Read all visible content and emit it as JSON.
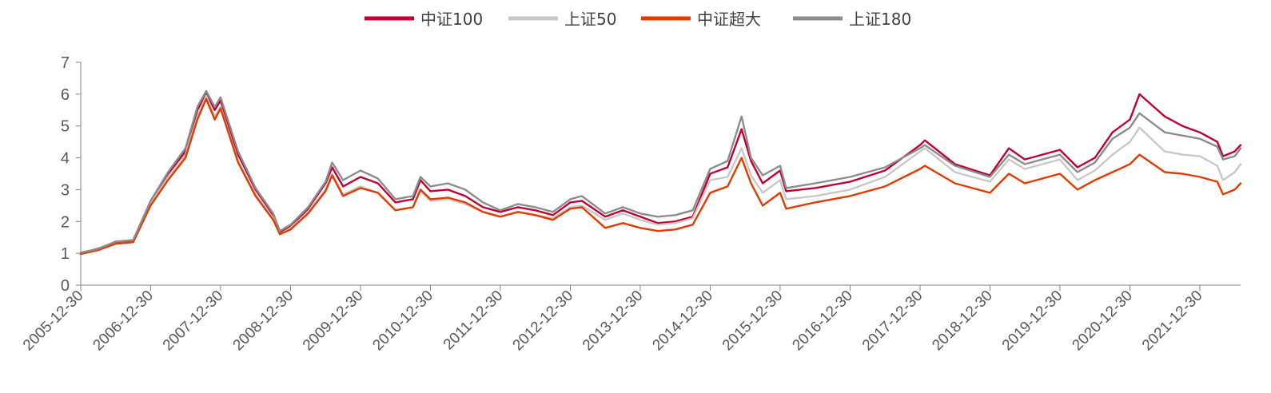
{
  "chart_data": {
    "type": "line",
    "title": "",
    "xlabel": "",
    "ylabel": "",
    "ylim": [
      0,
      7
    ],
    "yticks": [
      0,
      1,
      2,
      3,
      4,
      5,
      6,
      7
    ],
    "xlim": [
      "2005-12-30",
      "2022-07-31"
    ],
    "xticks": [
      "2005-12-30",
      "2006-12-30",
      "2007-12-30",
      "2008-12-30",
      "2009-12-30",
      "2010-12-30",
      "2011-12-30",
      "2012-12-30",
      "2013-12-30",
      "2014-12-30",
      "2015-12-30",
      "2016-12-30",
      "2017-12-30",
      "2018-12-30",
      "2019-12-30",
      "2020-12-30",
      "2021-12-30"
    ],
    "grid": false,
    "legend_position": "top-center",
    "x": [
      "2005-12-30",
      "2006-03-31",
      "2006-06-30",
      "2006-09-30",
      "2006-12-30",
      "2007-03-31",
      "2007-06-30",
      "2007-08-31",
      "2007-10-16",
      "2007-11-30",
      "2007-12-30",
      "2008-03-31",
      "2008-06-30",
      "2008-09-30",
      "2008-11-04",
      "2008-12-30",
      "2009-03-31",
      "2009-06-30",
      "2009-08-04",
      "2009-09-30",
      "2009-12-30",
      "2010-03-31",
      "2010-06-30",
      "2010-09-30",
      "2010-11-08",
      "2010-12-30",
      "2011-03-31",
      "2011-06-30",
      "2011-09-30",
      "2011-12-30",
      "2012-03-31",
      "2012-06-30",
      "2012-09-30",
      "2012-12-30",
      "2013-02-28",
      "2013-06-30",
      "2013-09-30",
      "2013-12-30",
      "2014-03-31",
      "2014-06-30",
      "2014-09-30",
      "2014-12-30",
      "2015-03-31",
      "2015-06-12",
      "2015-07-31",
      "2015-09-30",
      "2015-12-30",
      "2016-01-31",
      "2016-06-30",
      "2016-12-30",
      "2017-06-30",
      "2017-12-30",
      "2018-01-24",
      "2018-06-30",
      "2018-12-30",
      "2019-04-08",
      "2019-06-30",
      "2019-12-30",
      "2020-03-31",
      "2020-06-30",
      "2020-09-30",
      "2020-12-30",
      "2021-02-18",
      "2021-06-30",
      "2021-09-30",
      "2021-12-30",
      "2022-03-31",
      "2022-04-30",
      "2022-06-30",
      "2022-07-31"
    ],
    "series": [
      {
        "name": "中证100",
        "color": "#c00030",
        "values": [
          1.0,
          1.15,
          1.35,
          1.4,
          2.6,
          3.5,
          4.2,
          5.5,
          6.05,
          5.5,
          5.8,
          4.1,
          3.0,
          2.2,
          1.65,
          1.85,
          2.4,
          3.2,
          3.7,
          3.1,
          3.4,
          3.2,
          2.6,
          2.7,
          3.3,
          2.95,
          3.0,
          2.8,
          2.45,
          2.3,
          2.45,
          2.35,
          2.2,
          2.6,
          2.65,
          2.15,
          2.35,
          2.15,
          1.95,
          2.0,
          2.15,
          3.5,
          3.7,
          4.9,
          3.9,
          3.2,
          3.6,
          2.95,
          3.05,
          3.25,
          3.6,
          4.4,
          4.55,
          3.8,
          3.45,
          4.3,
          3.95,
          4.25,
          3.7,
          4.0,
          4.8,
          5.2,
          6.0,
          5.3,
          5.0,
          4.8,
          4.5,
          4.05,
          4.2,
          4.4
        ]
      },
      {
        "name": "上证50",
        "color": "#c8c8c8",
        "values": [
          1.0,
          1.12,
          1.3,
          1.35,
          2.55,
          3.4,
          4.1,
          5.3,
          5.95,
          5.3,
          5.6,
          3.9,
          2.85,
          2.1,
          1.6,
          1.8,
          2.3,
          3.0,
          3.5,
          2.85,
          3.1,
          2.9,
          2.35,
          2.45,
          2.95,
          2.65,
          2.7,
          2.55,
          2.3,
          2.15,
          2.3,
          2.2,
          2.1,
          2.45,
          2.5,
          2.05,
          2.25,
          2.05,
          1.9,
          1.95,
          2.1,
          3.3,
          3.4,
          4.3,
          3.45,
          2.9,
          3.3,
          2.7,
          2.8,
          3.0,
          3.4,
          4.2,
          4.3,
          3.55,
          3.25,
          3.95,
          3.65,
          3.95,
          3.3,
          3.6,
          4.1,
          4.5,
          4.95,
          4.2,
          4.1,
          4.05,
          3.75,
          3.3,
          3.55,
          3.8
        ]
      },
      {
        "name": "中证超大",
        "color": "#e03c00",
        "values": [
          0.98,
          1.1,
          1.3,
          1.35,
          2.5,
          3.3,
          4.0,
          5.2,
          5.85,
          5.2,
          5.55,
          3.85,
          2.8,
          2.05,
          1.6,
          1.75,
          2.25,
          2.95,
          3.45,
          2.8,
          3.05,
          2.9,
          2.35,
          2.45,
          3.0,
          2.7,
          2.75,
          2.6,
          2.3,
          2.15,
          2.3,
          2.2,
          2.05,
          2.4,
          2.45,
          1.8,
          1.95,
          1.8,
          1.7,
          1.75,
          1.9,
          2.9,
          3.1,
          4.0,
          3.2,
          2.5,
          2.9,
          2.4,
          2.6,
          2.8,
          3.1,
          3.65,
          3.75,
          3.2,
          2.9,
          3.5,
          3.2,
          3.5,
          3.0,
          3.3,
          3.55,
          3.8,
          4.1,
          3.55,
          3.5,
          3.4,
          3.25,
          2.85,
          3.0,
          3.2
        ]
      },
      {
        "name": "上证180",
        "color": "#8c8c8c",
        "values": [
          1.02,
          1.14,
          1.37,
          1.42,
          2.65,
          3.55,
          4.3,
          5.6,
          6.1,
          5.6,
          5.9,
          4.2,
          3.05,
          2.25,
          1.7,
          1.9,
          2.45,
          3.25,
          3.85,
          3.3,
          3.6,
          3.35,
          2.7,
          2.8,
          3.4,
          3.1,
          3.2,
          3.0,
          2.6,
          2.35,
          2.55,
          2.45,
          2.3,
          2.7,
          2.8,
          2.25,
          2.45,
          2.25,
          2.15,
          2.2,
          2.35,
          3.65,
          3.9,
          5.3,
          4.0,
          3.45,
          3.75,
          3.05,
          3.2,
          3.4,
          3.7,
          4.3,
          4.4,
          3.75,
          3.4,
          4.1,
          3.8,
          4.1,
          3.55,
          3.85,
          4.6,
          4.95,
          5.4,
          4.8,
          4.7,
          4.6,
          4.35,
          3.95,
          4.05,
          4.3
        ]
      }
    ]
  }
}
